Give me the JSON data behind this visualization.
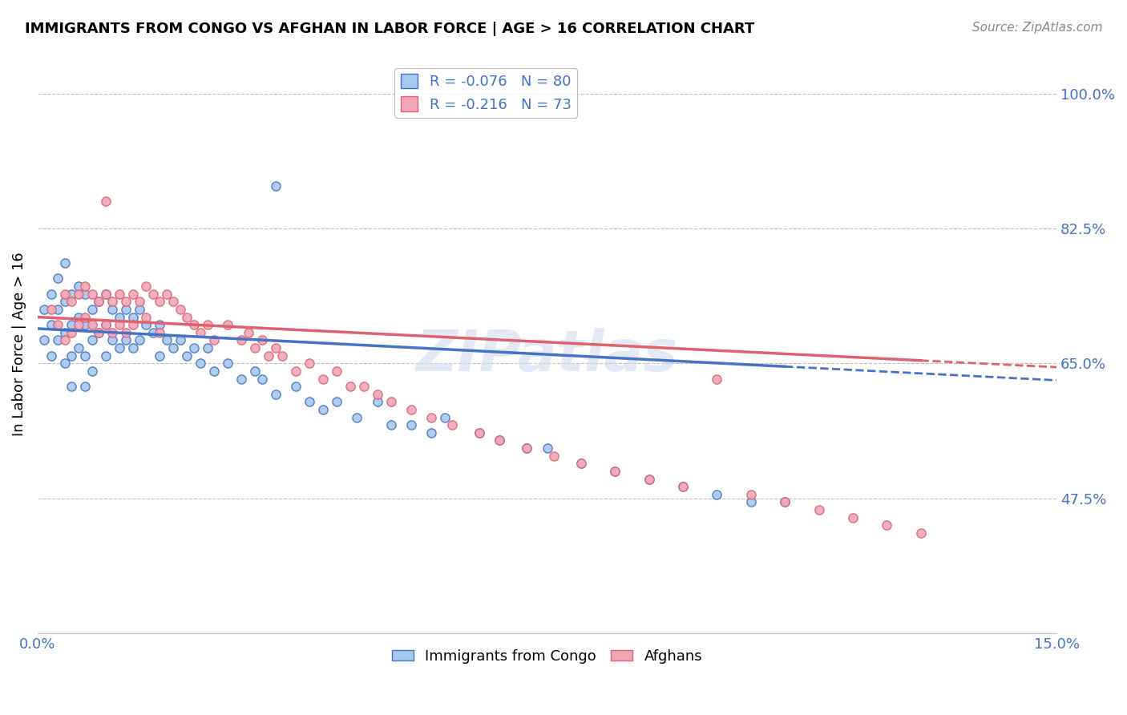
{
  "title": "IMMIGRANTS FROM CONGO VS AFGHAN IN LABOR FORCE | AGE > 16 CORRELATION CHART",
  "source": "Source: ZipAtlas.com",
  "ylabel": "In Labor Force | Age > 16",
  "xlim": [
    0.0,
    0.15
  ],
  "ylim": [
    0.3,
    1.05
  ],
  "xticks": [
    0.0,
    0.03,
    0.06,
    0.09,
    0.12,
    0.15
  ],
  "xticklabels": [
    "0.0%",
    "",
    "",
    "",
    "",
    "15.0%"
  ],
  "ytick_right_labels": [
    "100.0%",
    "82.5%",
    "65.0%",
    "47.5%"
  ],
  "ytick_right_values": [
    1.0,
    0.825,
    0.65,
    0.475
  ],
  "watermark": "ZIPatlas",
  "legend_label1": "Immigrants from Congo",
  "legend_label2": "Afghans",
  "R1": -0.076,
  "N1": 80,
  "R2": -0.216,
  "N2": 73,
  "color_congo": "#a8c8f0",
  "color_afghan": "#f0a8b8",
  "color_line_congo": "#4472c4",
  "color_line_afghan": "#e06070",
  "color_axis": "#4472c4",
  "background": "#ffffff",
  "grid_color": "#c0c0c0",
  "congo_x": [
    0.001,
    0.001,
    0.002,
    0.002,
    0.002,
    0.003,
    0.003,
    0.003,
    0.004,
    0.004,
    0.004,
    0.004,
    0.005,
    0.005,
    0.005,
    0.005,
    0.006,
    0.006,
    0.006,
    0.007,
    0.007,
    0.007,
    0.007,
    0.008,
    0.008,
    0.008,
    0.009,
    0.009,
    0.01,
    0.01,
    0.01,
    0.011,
    0.011,
    0.012,
    0.012,
    0.013,
    0.013,
    0.014,
    0.014,
    0.015,
    0.015,
    0.016,
    0.017,
    0.018,
    0.018,
    0.019,
    0.02,
    0.021,
    0.022,
    0.023,
    0.024,
    0.025,
    0.026,
    0.028,
    0.03,
    0.032,
    0.033,
    0.035,
    0.038,
    0.04,
    0.042,
    0.044,
    0.047,
    0.05,
    0.052,
    0.055,
    0.058,
    0.06,
    0.065,
    0.068,
    0.072,
    0.075,
    0.08,
    0.085,
    0.09,
    0.095,
    0.1,
    0.105,
    0.11,
    0.035
  ],
  "congo_y": [
    0.68,
    0.72,
    0.7,
    0.74,
    0.66,
    0.72,
    0.68,
    0.76,
    0.73,
    0.69,
    0.65,
    0.78,
    0.74,
    0.7,
    0.66,
    0.62,
    0.75,
    0.71,
    0.67,
    0.74,
    0.7,
    0.66,
    0.62,
    0.72,
    0.68,
    0.64,
    0.73,
    0.69,
    0.74,
    0.7,
    0.66,
    0.72,
    0.68,
    0.71,
    0.67,
    0.72,
    0.68,
    0.71,
    0.67,
    0.72,
    0.68,
    0.7,
    0.69,
    0.7,
    0.66,
    0.68,
    0.67,
    0.68,
    0.66,
    0.67,
    0.65,
    0.67,
    0.64,
    0.65,
    0.63,
    0.64,
    0.63,
    0.61,
    0.62,
    0.6,
    0.59,
    0.6,
    0.58,
    0.6,
    0.57,
    0.57,
    0.56,
    0.58,
    0.56,
    0.55,
    0.54,
    0.54,
    0.52,
    0.51,
    0.5,
    0.49,
    0.48,
    0.47,
    0.47,
    0.88
  ],
  "afghan_x": [
    0.002,
    0.003,
    0.004,
    0.004,
    0.005,
    0.005,
    0.006,
    0.006,
    0.007,
    0.007,
    0.008,
    0.008,
    0.009,
    0.009,
    0.01,
    0.01,
    0.011,
    0.011,
    0.012,
    0.012,
    0.013,
    0.013,
    0.014,
    0.014,
    0.015,
    0.016,
    0.016,
    0.017,
    0.018,
    0.018,
    0.019,
    0.02,
    0.021,
    0.022,
    0.023,
    0.024,
    0.025,
    0.026,
    0.028,
    0.03,
    0.031,
    0.032,
    0.033,
    0.034,
    0.035,
    0.036,
    0.038,
    0.04,
    0.042,
    0.044,
    0.046,
    0.048,
    0.05,
    0.052,
    0.055,
    0.058,
    0.061,
    0.065,
    0.068,
    0.072,
    0.076,
    0.08,
    0.085,
    0.09,
    0.095,
    0.1,
    0.105,
    0.11,
    0.115,
    0.12,
    0.125,
    0.13,
    0.01
  ],
  "afghan_y": [
    0.72,
    0.7,
    0.74,
    0.68,
    0.73,
    0.69,
    0.74,
    0.7,
    0.75,
    0.71,
    0.74,
    0.7,
    0.73,
    0.69,
    0.74,
    0.7,
    0.73,
    0.69,
    0.74,
    0.7,
    0.73,
    0.69,
    0.74,
    0.7,
    0.73,
    0.75,
    0.71,
    0.74,
    0.73,
    0.69,
    0.74,
    0.73,
    0.72,
    0.71,
    0.7,
    0.69,
    0.7,
    0.68,
    0.7,
    0.68,
    0.69,
    0.67,
    0.68,
    0.66,
    0.67,
    0.66,
    0.64,
    0.65,
    0.63,
    0.64,
    0.62,
    0.62,
    0.61,
    0.6,
    0.59,
    0.58,
    0.57,
    0.56,
    0.55,
    0.54,
    0.53,
    0.52,
    0.51,
    0.5,
    0.49,
    0.63,
    0.48,
    0.47,
    0.46,
    0.45,
    0.44,
    0.43,
    0.86
  ],
  "line_congo_x0": 0.0,
  "line_congo_x1": 0.15,
  "line_congo_y0": 0.695,
  "line_congo_y1": 0.628,
  "line_afghan_x0": 0.0,
  "line_afghan_x1": 0.15,
  "line_afghan_y0": 0.71,
  "line_afghan_y1": 0.645
}
